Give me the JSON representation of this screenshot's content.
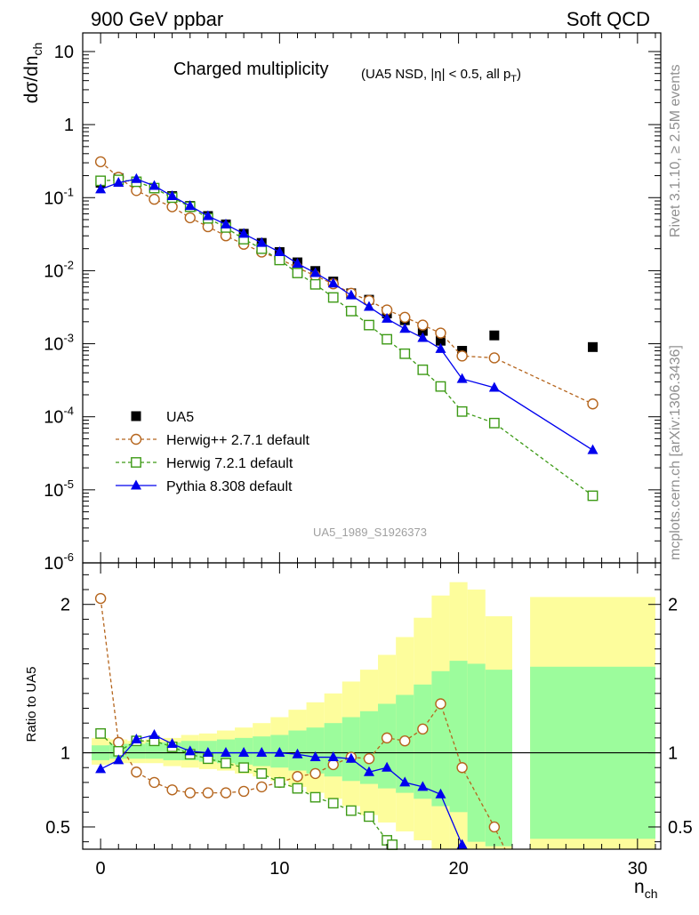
{
  "header": {
    "left": "900 GeV ppbar",
    "right": "Soft QCD"
  },
  "side_labels": {
    "top": "Rivet 3.1.10, ≥ 2.5M events",
    "bottom": "mcplots.cern.ch [arXiv:1306.3436]"
  },
  "watermark": "UA5_1989_S1926373",
  "chart_data": [
    {
      "type": "scatter",
      "title": "Charged multiplicity",
      "subtitle": "(UA5 NSD, |η| < 0.5, all pT)",
      "ylabel": "dσ/dnch",
      "yscale": "log",
      "xlim": [
        -1,
        31.3
      ],
      "ylim": [
        1e-06,
        18
      ],
      "y_ticks": [
        {
          "value": 10,
          "label": "10"
        },
        {
          "value": 1,
          "label": "1"
        },
        {
          "value": 0.1,
          "label": "10-1"
        },
        {
          "value": 0.01,
          "label": "10-2"
        },
        {
          "value": 0.001,
          "label": "10-3"
        },
        {
          "value": 0.0001,
          "label": "10-4"
        },
        {
          "value": 1e-05,
          "label": "10-5"
        },
        {
          "value": 1e-06,
          "label": "10-6"
        }
      ],
      "legend_position": "bottom-left",
      "series": [
        {
          "name": "UA5",
          "style": "data-square",
          "color": "#000000",
          "x": [
            0,
            1,
            2,
            3,
            4,
            5,
            6,
            7,
            8,
            9,
            10,
            11,
            12,
            13,
            14,
            15,
            16,
            17,
            18,
            19,
            20.2,
            22,
            27.5
          ],
          "y": [
            0.16,
            0.185,
            0.165,
            0.135,
            0.105,
            0.077,
            0.056,
            0.043,
            0.032,
            0.024,
            0.018,
            0.013,
            0.0099,
            0.0071,
            0.0049,
            0.004,
            0.0026,
            0.0021,
            0.0015,
            0.0011,
            0.0008,
            0.0013,
            0.0009
          ]
        },
        {
          "name": "Herwig++ 2.7.1 default",
          "style": "open-circle-dashed",
          "color": "#b5651d",
          "x": [
            0,
            1,
            2,
            3,
            4,
            5,
            6,
            7,
            8,
            9,
            10,
            11,
            12,
            13,
            14,
            15,
            16,
            17,
            18,
            19,
            20.2,
            22,
            27.5
          ],
          "y": [
            0.31,
            0.19,
            0.125,
            0.095,
            0.075,
            0.053,
            0.04,
            0.03,
            0.023,
            0.018,
            0.0145,
            0.011,
            0.0085,
            0.0066,
            0.0049,
            0.0039,
            0.0029,
            0.0023,
            0.0018,
            0.0014,
            0.00068,
            0.00064,
            0.00015
          ]
        },
        {
          "name": "Herwig 7.2.1 default",
          "style": "open-square-dashed",
          "color": "#3d9a16",
          "x": [
            0,
            1,
            2,
            3,
            4,
            5,
            6,
            7,
            8,
            9,
            10,
            11,
            12,
            13,
            14,
            15,
            16,
            17,
            18,
            19,
            20.2,
            22,
            27.5
          ],
          "y": [
            0.17,
            0.175,
            0.165,
            0.135,
            0.1,
            0.075,
            0.052,
            0.039,
            0.027,
            0.02,
            0.014,
            0.0093,
            0.0065,
            0.0043,
            0.0028,
            0.0018,
            0.00115,
            0.00073,
            0.00044,
            0.00026,
            0.000118,
            8.2e-05,
            8.3e-06
          ]
        },
        {
          "name": "Pythia 8.308 default",
          "style": "filled-triangle-solid",
          "color": "#0000ee",
          "x": [
            0,
            1,
            2,
            3,
            4,
            5,
            6,
            7,
            8,
            9,
            10,
            11,
            12,
            13,
            14,
            15,
            16,
            17,
            18,
            19,
            20.2,
            22,
            27.5
          ],
          "y": [
            0.13,
            0.16,
            0.18,
            0.145,
            0.105,
            0.077,
            0.056,
            0.043,
            0.032,
            0.024,
            0.018,
            0.0125,
            0.0093,
            0.0067,
            0.0046,
            0.0032,
            0.0022,
            0.0016,
            0.0012,
            0.00085,
            0.00033,
            0.00025,
            3.5e-05
          ]
        }
      ]
    },
    {
      "type": "line",
      "ylabel": "Ratio to UA5",
      "xlabel": "nch",
      "xlim": [
        -1,
        31.3
      ],
      "ylim": [
        0.35,
        2.28
      ],
      "x_ticks": [
        0,
        10,
        20,
        30
      ],
      "y_ticks": [
        {
          "value": 2,
          "label": "2"
        },
        {
          "value": 1,
          "label": "1"
        },
        {
          "value": 0.5,
          "label": "0.5"
        }
      ],
      "uncertainty_bands": {
        "colors": {
          "inner": "#9cfc9c",
          "outer": "#fdfd9c"
        },
        "bins": [
          {
            "x": [
              -0.5,
              0.5
            ],
            "inner": [
              0.95,
              1.05
            ],
            "outer": [
              0.92,
              1.1
            ]
          },
          {
            "x": [
              0.5,
              1.5
            ],
            "inner": [
              0.96,
              1.06
            ],
            "outer": [
              0.93,
              1.09
            ]
          },
          {
            "x": [
              1.5,
              2.5
            ],
            "inner": [
              0.96,
              1.06
            ],
            "outer": [
              0.93,
              1.08
            ]
          },
          {
            "x": [
              2.5,
              3.5
            ],
            "inner": [
              0.96,
              1.07
            ],
            "outer": [
              0.93,
              1.09
            ]
          },
          {
            "x": [
              3.5,
              4.5
            ],
            "inner": [
              0.95,
              1.07
            ],
            "outer": [
              0.91,
              1.1
            ]
          },
          {
            "x": [
              4.5,
              5.5
            ],
            "inner": [
              0.95,
              1.08
            ],
            "outer": [
              0.9,
              1.12
            ]
          },
          {
            "x": [
              5.5,
              6.5
            ],
            "inner": [
              0.94,
              1.08
            ],
            "outer": [
              0.89,
              1.13
            ]
          },
          {
            "x": [
              6.5,
              7.5
            ],
            "inner": [
              0.93,
              1.09
            ],
            "outer": [
              0.88,
              1.15
            ]
          },
          {
            "x": [
              7.5,
              8.5
            ],
            "inner": [
              0.92,
              1.1
            ],
            "outer": [
              0.86,
              1.17
            ]
          },
          {
            "x": [
              8.5,
              9.5
            ],
            "inner": [
              0.91,
              1.11
            ],
            "outer": [
              0.84,
              1.2
            ]
          },
          {
            "x": [
              9.5,
              10.5
            ],
            "inner": [
              0.9,
              1.12
            ],
            "outer": [
              0.81,
              1.24
            ]
          },
          {
            "x": [
              10.5,
              11.5
            ],
            "inner": [
              0.88,
              1.15
            ],
            "outer": [
              0.77,
              1.29
            ]
          },
          {
            "x": [
              11.5,
              12.5
            ],
            "inner": [
              0.86,
              1.17
            ],
            "outer": [
              0.73,
              1.34
            ]
          },
          {
            "x": [
              12.5,
              13.5
            ],
            "inner": [
              0.84,
              1.2
            ],
            "outer": [
              0.69,
              1.4
            ]
          },
          {
            "x": [
              13.5,
              14.5
            ],
            "inner": [
              0.81,
              1.24
            ],
            "outer": [
              0.64,
              1.48
            ]
          },
          {
            "x": [
              14.5,
              15.5
            ],
            "inner": [
              0.79,
              1.28
            ],
            "outer": [
              0.58,
              1.56
            ]
          },
          {
            "x": [
              15.5,
              16.5
            ],
            "inner": [
              0.76,
              1.33
            ],
            "outer": [
              0.53,
              1.66
            ]
          },
          {
            "x": [
              16.5,
              17.5
            ],
            "inner": [
              0.73,
              1.39
            ],
            "outer": [
              0.47,
              1.78
            ]
          },
          {
            "x": [
              17.5,
              18.5
            ],
            "inner": [
              0.69,
              1.46
            ],
            "outer": [
              0.41,
              1.91
            ]
          },
          {
            "x": [
              18.5,
              19.5
            ],
            "inner": [
              0.64,
              1.55
            ],
            "outer": [
              0.35,
              2.06
            ]
          },
          {
            "x": [
              19.5,
              20.5
            ],
            "inner": [
              0.6,
              1.62
            ],
            "outer": [
              0.35,
              2.15
            ]
          },
          {
            "x": [
              20.5,
              21.5
            ],
            "inner": [
              0.4,
              1.6
            ],
            "outer": [
              0.35,
              2.1
            ]
          },
          {
            "x": [
              21.5,
              23.0
            ],
            "inner": [
              0.37,
              1.56
            ],
            "outer": [
              0.35,
              1.92
            ]
          },
          {
            "x": [
              24.0,
              31.0
            ],
            "inner": [
              0.42,
              1.58
            ],
            "outer": [
              0.35,
              2.05
            ]
          }
        ]
      },
      "series": [
        {
          "name": "Herwig++ 2.7.1 default",
          "style": "open-circle-dashed",
          "color": "#b5651d",
          "x": [
            0,
            1,
            2,
            3,
            4,
            5,
            6,
            7,
            8,
            9,
            10,
            11,
            12,
            13,
            14,
            15,
            16,
            17,
            18,
            19,
            20.2,
            22,
            22.6
          ],
          "y": [
            2.04,
            1.07,
            0.87,
            0.8,
            0.75,
            0.73,
            0.73,
            0.73,
            0.74,
            0.77,
            0.8,
            0.84,
            0.86,
            0.92,
            0.97,
            0.96,
            1.1,
            1.08,
            1.16,
            1.33,
            0.9,
            0.5,
            0.35
          ]
        },
        {
          "name": "Herwig 7.2.1 default",
          "style": "open-square-dashed",
          "color": "#3d9a16",
          "x": [
            0,
            1,
            2,
            3,
            4,
            5,
            6,
            7,
            8,
            9,
            10,
            11,
            12,
            13,
            14,
            15,
            16,
            16.3
          ],
          "y": [
            1.13,
            1.01,
            1.08,
            1.08,
            1.04,
            0.99,
            0.96,
            0.93,
            0.9,
            0.86,
            0.8,
            0.76,
            0.7,
            0.66,
            0.61,
            0.57,
            0.41,
            0.38
          ]
        },
        {
          "name": "Pythia 8.308 default",
          "style": "filled-triangle-solid",
          "color": "#0000ee",
          "x": [
            0,
            1,
            2,
            3,
            4,
            5,
            6,
            7,
            8,
            9,
            10,
            11,
            12,
            13,
            14,
            15,
            16,
            17,
            18,
            19,
            20.2,
            20.3
          ],
          "y": [
            0.89,
            0.95,
            1.09,
            1.12,
            1.06,
            1.01,
            1.0,
            1.0,
            1.0,
            1.0,
            1.0,
            0.99,
            0.97,
            0.97,
            0.96,
            0.87,
            0.9,
            0.8,
            0.77,
            0.72,
            0.38,
            0.35
          ]
        }
      ]
    }
  ]
}
